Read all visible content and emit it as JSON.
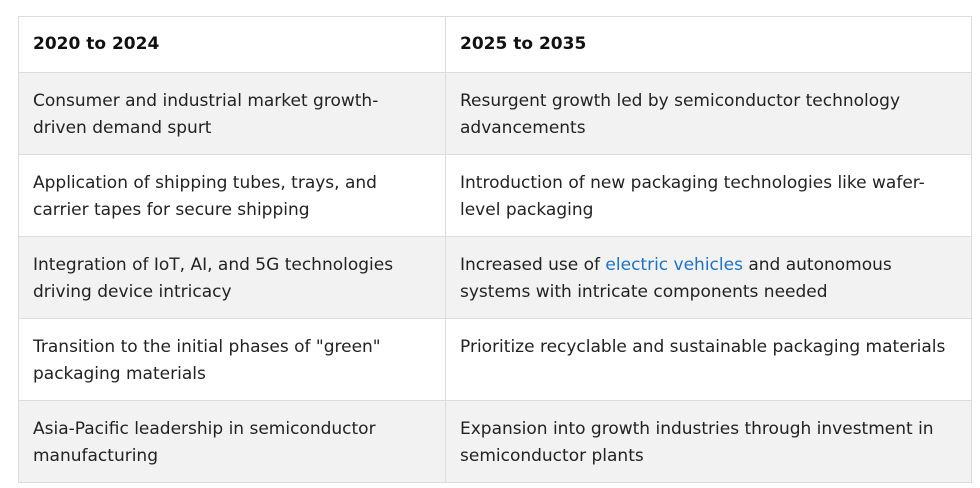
{
  "table": {
    "headers": [
      "2020 to 2024",
      "2025 to 2035"
    ],
    "rows": [
      {
        "left": "Consumer and industrial market growth-driven demand spurt",
        "right": "Resurgent growth led by semiconductor technology advancements"
      },
      {
        "left": "Application of shipping tubes, trays, and carrier tapes for secure shipping",
        "right": "Introduction of new packaging technologies like wafer-level packaging"
      },
      {
        "left": "Integration of IoT, AI, and 5G technologies driving device intricacy",
        "right_before": "Increased use of ",
        "right_link": "electric vehicles",
        "right_after": " and autonomous systems with intricate components needed"
      },
      {
        "left": "Transition to the initial phases of \"green\" packaging materials",
        "right": "Prioritize recyclable and sustainable packaging materials"
      },
      {
        "left": "Asia-Pacific leadership in semiconductor manufacturing",
        "right": "Expansion into growth industries through investment in semiconductor plants"
      }
    ]
  },
  "colors": {
    "link": "#1a73c8",
    "stripe": "#f2f2f2",
    "border": "#dcdcdc"
  }
}
